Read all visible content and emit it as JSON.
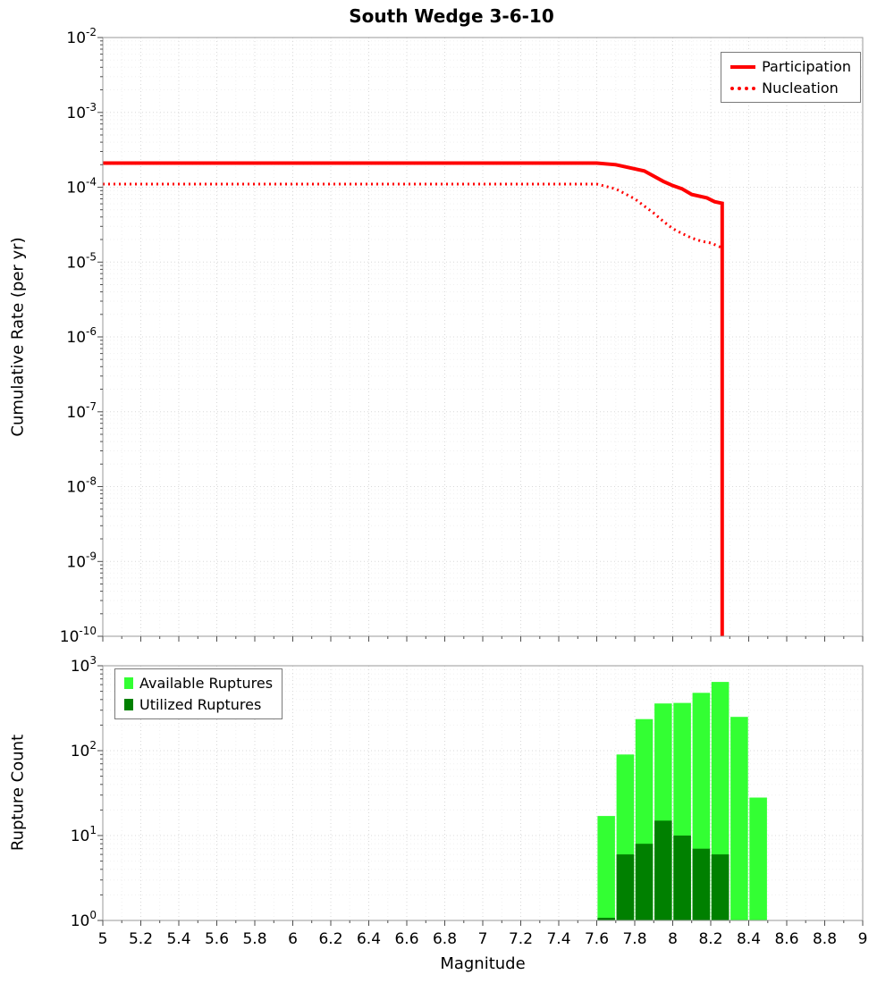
{
  "figure_title": "South Wedge 3-6-10",
  "style": {
    "plot_bg": "#ffffff",
    "grid_major": "#d8d8d8",
    "grid_minor": "#f0f0f0",
    "frame": "#9a9a9a",
    "tick": "#4d4d4d",
    "text": "#000000"
  },
  "chart_data": [
    {
      "type": "line",
      "title": "South Wedge 3-6-10",
      "xlabel": "",
      "ylabel": "Cumulative Rate (per yr)",
      "x_scale": "linear",
      "y_scale": "log",
      "xlim": [
        5,
        9
      ],
      "ylim": [
        1e-10,
        0.01
      ],
      "ylim_exp": [
        -10,
        -2
      ],
      "y_tick_exponents": [
        -2,
        -3,
        -4,
        -5,
        -6,
        -7,
        -8,
        -9,
        -10
      ],
      "x_ticks": [
        5,
        5.2,
        5.4,
        5.6,
        5.8,
        6,
        6.2,
        6.4,
        6.6,
        6.8,
        7,
        7.2,
        7.4,
        7.6,
        7.8,
        8,
        8.2,
        8.4,
        8.6,
        8.8,
        9
      ],
      "grid": true,
      "legend_position": "top-right",
      "series": [
        {
          "name": "Participation",
          "color": "#ff0000",
          "line_style": "solid",
          "line_width": 4,
          "points": [
            [
              5.0,
              0.00021
            ],
            [
              7.6,
              0.00021
            ],
            [
              7.7,
              0.0002
            ],
            [
              7.85,
              0.000165
            ],
            [
              7.95,
              0.00012
            ],
            [
              8.0,
              0.000105
            ],
            [
              8.05,
              9.5e-05
            ],
            [
              8.1,
              8e-05
            ],
            [
              8.18,
              7.2e-05
            ],
            [
              8.22,
              6.4e-05
            ],
            [
              8.26,
              6.1e-05
            ],
            [
              8.26,
              1e-10
            ]
          ]
        },
        {
          "name": "Nucleation",
          "color": "#ff0000",
          "line_style": "dotted",
          "line_width": 3,
          "points": [
            [
              5.0,
              0.00011
            ],
            [
              7.6,
              0.00011
            ],
            [
              7.7,
              9.5e-05
            ],
            [
              7.8,
              7e-05
            ],
            [
              7.9,
              4.5e-05
            ],
            [
              7.95,
              3.5e-05
            ],
            [
              8.0,
              2.8e-05
            ],
            [
              8.05,
              2.4e-05
            ],
            [
              8.1,
              2.1e-05
            ],
            [
              8.15,
              1.9e-05
            ],
            [
              8.2,
              1.8e-05
            ],
            [
              8.26,
              1.55e-05
            ],
            [
              8.26,
              1e-10
            ]
          ]
        }
      ]
    },
    {
      "type": "bar",
      "title": "",
      "xlabel": "Magnitude",
      "ylabel": "Rupture Count",
      "x_scale": "linear",
      "y_scale": "log",
      "xlim": [
        5,
        9
      ],
      "ylim": [
        1,
        1000
      ],
      "ylim_exp": [
        0,
        3
      ],
      "y_tick_exponents": [
        0,
        1,
        2,
        3
      ],
      "x_ticks": [
        5,
        5.2,
        5.4,
        5.6,
        5.8,
        6,
        6.2,
        6.4,
        6.6,
        6.8,
        7,
        7.2,
        7.4,
        7.6,
        7.8,
        8,
        8.2,
        8.4,
        8.6,
        8.8,
        9
      ],
      "grid": true,
      "legend_position": "top-left",
      "bin_width": 0.1,
      "bin_centers": [
        7.65,
        7.75,
        7.85,
        7.95,
        8.05,
        8.15,
        8.25,
        8.35,
        8.45
      ],
      "series": [
        {
          "name": "Available Ruptures",
          "color": "#33ff33",
          "values": [
            17,
            90,
            235,
            360,
            365,
            480,
            645,
            250,
            28
          ]
        },
        {
          "name": "Utilized Ruptures",
          "color": "#008000",
          "values": [
            1,
            6,
            8,
            15,
            10,
            7,
            6,
            0,
            0
          ]
        }
      ]
    }
  ]
}
